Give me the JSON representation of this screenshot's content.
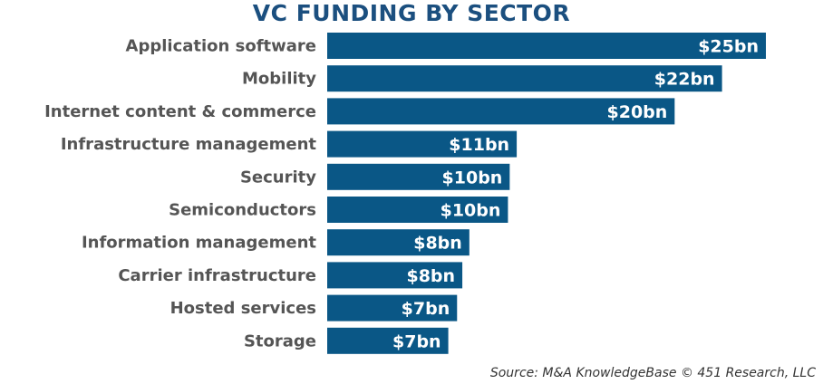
{
  "chart_data": {
    "type": "bar",
    "orientation": "horizontal",
    "title": "VC FUNDING BY SECTOR",
    "categories": [
      "Application software",
      "Mobility",
      "Internet content & commerce",
      "Infrastructure management",
      "Security",
      "Semiconductors",
      "Information management",
      "Carrier infrastructure",
      "Hosted services",
      "Storage"
    ],
    "values": [
      25.0,
      22.5,
      19.8,
      10.8,
      10.4,
      10.3,
      8.1,
      7.7,
      7.4,
      6.9
    ],
    "value_labels": [
      "$25bn",
      "$22bn",
      "$20bn",
      "$11bn",
      "$10bn",
      "$10bn",
      "$8bn",
      "$8bn",
      "$7bn",
      "$7bn"
    ],
    "unit": "bn",
    "xlim": [
      0,
      26
    ],
    "grid": false,
    "legend": "none",
    "bar_color": "#0a5786",
    "source": "Source: M&A KnowledgeBase © 451 Research, LLC"
  }
}
